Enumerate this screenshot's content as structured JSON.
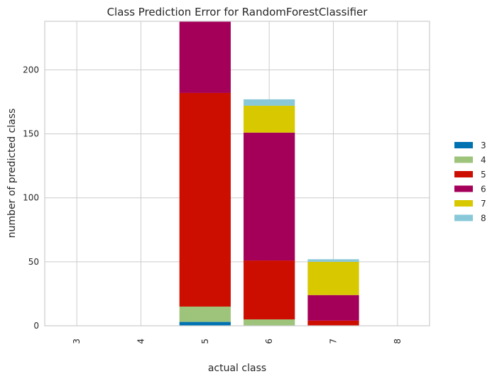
{
  "chart_data": {
    "type": "bar",
    "stacked": true,
    "title": "Class Prediction Error for RandomForestClassifier",
    "xlabel": "actual class",
    "ylabel": "number of predicted class",
    "categories": [
      "3",
      "4",
      "5",
      "6",
      "7",
      "8"
    ],
    "ylim": [
      0,
      238
    ],
    "yticks": [
      0,
      50,
      100,
      150,
      200
    ],
    "grid": true,
    "legend_position": "right",
    "series": [
      {
        "name": "3",
        "color": "#0072b2",
        "values": [
          0,
          0,
          3,
          0,
          0,
          0
        ]
      },
      {
        "name": "4",
        "color": "#9dc47a",
        "values": [
          0,
          0,
          12,
          5,
          0,
          0
        ]
      },
      {
        "name": "5",
        "color": "#cc0e00",
        "values": [
          0,
          0,
          167,
          46,
          4,
          0
        ]
      },
      {
        "name": "6",
        "color": "#a50059",
        "values": [
          0,
          0,
          56,
          100,
          20,
          0
        ]
      },
      {
        "name": "7",
        "color": "#d8c800",
        "values": [
          0,
          0,
          0,
          21,
          26,
          0
        ]
      },
      {
        "name": "8",
        "color": "#88c8d8",
        "values": [
          0,
          0,
          0,
          5,
          2,
          0
        ]
      }
    ]
  }
}
